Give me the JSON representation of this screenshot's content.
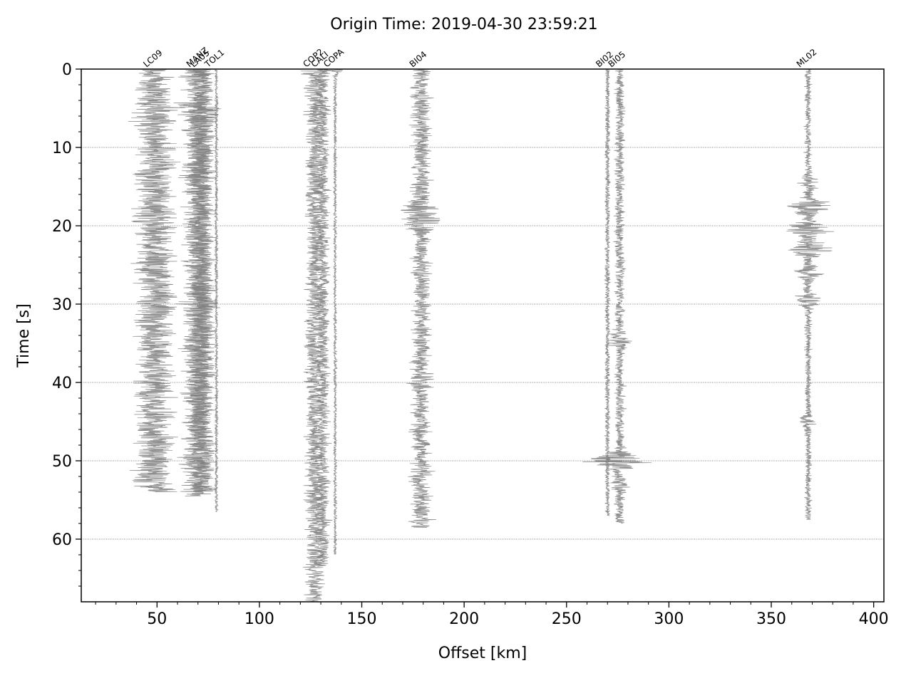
{
  "chart_data": {
    "type": "line",
    "title": "Origin Time: 2019-04-30 23:59:21",
    "xlabel": "Offset [km]",
    "ylabel": "Time [s]",
    "xlim": [
      13,
      405
    ],
    "ylim": [
      0,
      68
    ],
    "y_inverted": true,
    "x_ticks": [
      50,
      100,
      150,
      200,
      250,
      300,
      350,
      400
    ],
    "y_ticks": [
      0,
      10,
      20,
      30,
      40,
      50,
      60
    ],
    "grid": "horizontal dotted at major y ticks",
    "trace_color": "#808080",
    "series": [
      {
        "name": "LC09",
        "offset": 49,
        "end_time": 54,
        "amplitude": 14,
        "bursts": [
          [
            5,
            1.2
          ],
          [
            12,
            1.3
          ],
          [
            19,
            1.2
          ],
          [
            33,
            1.1
          ],
          [
            48,
            1.1
          ]
        ]
      },
      {
        "name": "MANZ",
        "offset": 70,
        "end_time": 54.5,
        "amplitude": 11,
        "bursts": [
          [
            5,
            1.5
          ],
          [
            30,
            1.3
          ],
          [
            50,
            1.2
          ]
        ]
      },
      {
        "name": "LA05",
        "offset": 72,
        "end_time": 54,
        "amplitude": 9,
        "bursts": [
          [
            6,
            1.4
          ],
          [
            28,
            1.2
          ],
          [
            37,
            1.2
          ]
        ]
      },
      {
        "name": "TOL1",
        "offset": 79,
        "end_time": 56.5,
        "amplitude": 1.2,
        "bursts": [
          [
            5,
            1.5
          ]
        ]
      },
      {
        "name": "COP2",
        "offset": 127,
        "end_time": 68,
        "amplitude": 7,
        "bursts": [
          [
            0,
            1.6
          ],
          [
            15,
            1.2
          ],
          [
            64,
            1.3
          ]
        ]
      },
      {
        "name": "CALI",
        "offset": 131,
        "end_time": 63.5,
        "amplitude": 5,
        "bursts": [
          [
            0,
            1.4
          ],
          [
            33,
            1.1
          ]
        ]
      },
      {
        "name": "COPA",
        "offset": 137,
        "end_time": 62,
        "amplitude": 1.2,
        "bursts": [
          [
            0,
            4
          ]
        ]
      },
      {
        "name": "BI04",
        "offset": 179,
        "end_time": 58.5,
        "amplitude": 7,
        "bursts": [
          [
            18,
            2
          ],
          [
            19.5,
            2.2
          ],
          [
            40,
            1.4
          ],
          [
            52,
            1.4
          ],
          [
            57,
            1.3
          ]
        ]
      },
      {
        "name": "BI02",
        "offset": 270,
        "end_time": 57,
        "amplitude": 1.8,
        "bursts": [
          [
            27,
            1.2
          ]
        ]
      },
      {
        "name": "BI05",
        "offset": 276,
        "end_time": 58,
        "amplitude": 3.5,
        "bursts": [
          [
            34.5,
            3
          ],
          [
            50,
            6
          ],
          [
            53,
            2
          ]
        ]
      },
      {
        "name": "ML02",
        "offset": 368,
        "end_time": 57.5,
        "amplitude": 2.5,
        "bursts": [
          [
            14.5,
            3
          ],
          [
            17.5,
            7
          ],
          [
            20.5,
            6
          ],
          [
            23,
            7
          ],
          [
            26,
            4
          ],
          [
            29.5,
            4
          ],
          [
            45,
            2.5
          ]
        ]
      }
    ]
  }
}
